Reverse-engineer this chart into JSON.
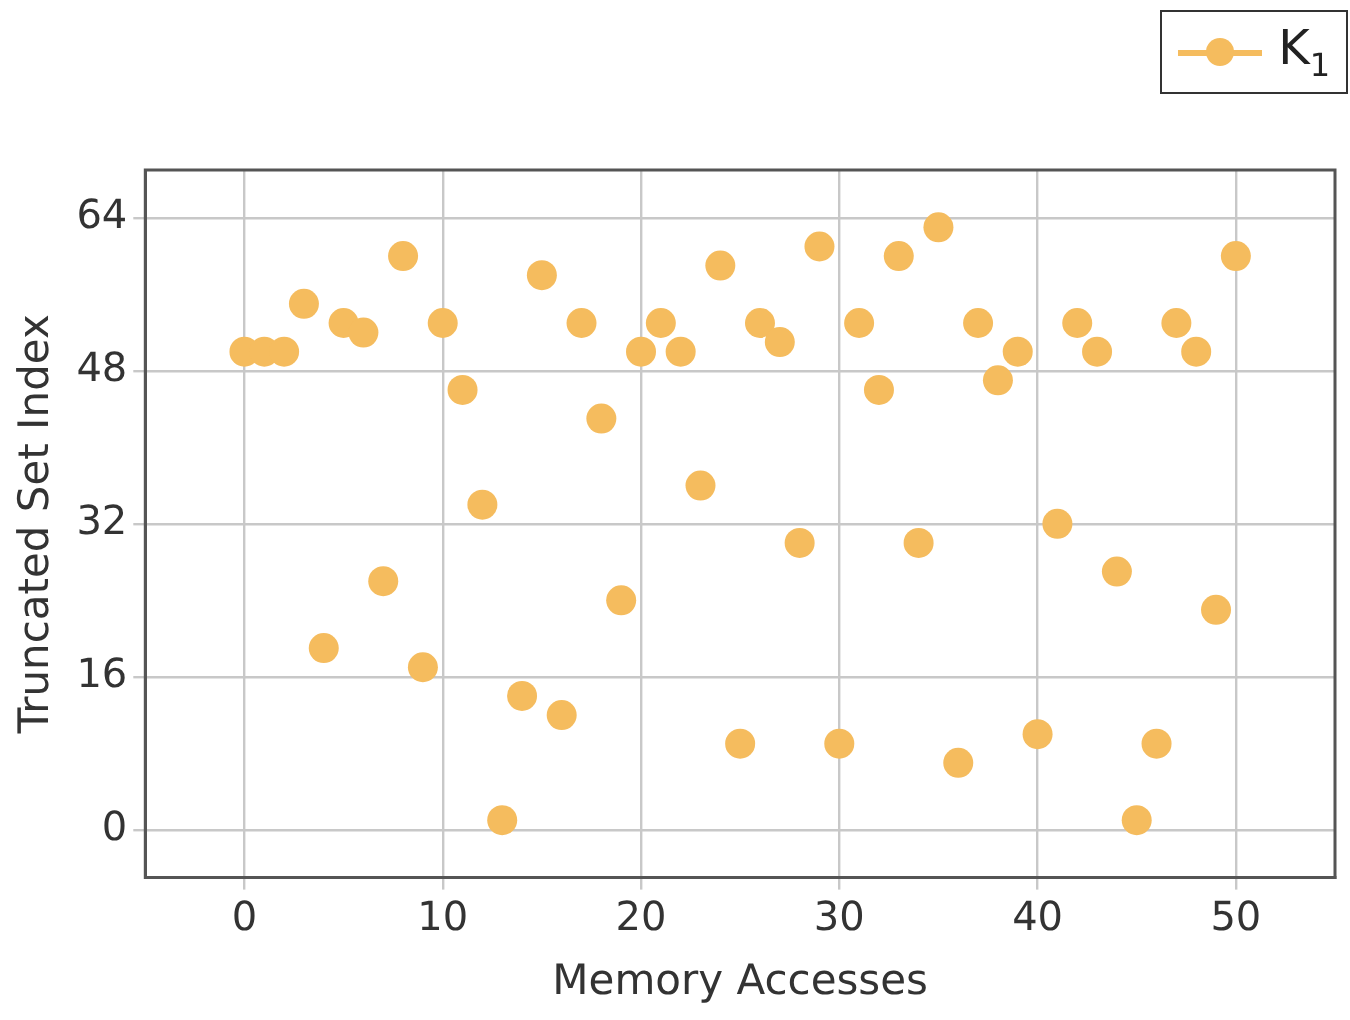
{
  "chart_data": {
    "type": "scatter",
    "xlabel": "Memory Accesses",
    "ylabel": "Truncated Set Index",
    "x": [
      0,
      1,
      2,
      3,
      4,
      5,
      6,
      7,
      8,
      9,
      10,
      11,
      12,
      13,
      14,
      15,
      16,
      17,
      18,
      19,
      20,
      21,
      22,
      23,
      24,
      25,
      26,
      27,
      28,
      29,
      30,
      31,
      32,
      33,
      34,
      35,
      36,
      37,
      38,
      39,
      40,
      41,
      42,
      43,
      44,
      45,
      46,
      47,
      48,
      49,
      50
    ],
    "series": [
      {
        "name": "K$_{1}$",
        "color": "#f5bc5e",
        "values": [
          50,
          50,
          50,
          55,
          19,
          53,
          52,
          26,
          60,
          17,
          53,
          46,
          34,
          1,
          14,
          58,
          12,
          53,
          43,
          24,
          50,
          53,
          50,
          36,
          59,
          9,
          53,
          51,
          30,
          61,
          9,
          53,
          46,
          60,
          30,
          63,
          7,
          53,
          47,
          50,
          10,
          32,
          53,
          50,
          27,
          1,
          9,
          53,
          50,
          23,
          60
        ]
      }
    ],
    "xlim": [
      -5,
      55
    ],
    "xticks": [
      0,
      10,
      20,
      30,
      40,
      50
    ],
    "ylim": [
      -5,
      69
    ],
    "yticks": [
      0,
      16,
      32,
      48,
      64
    ],
    "grid": true,
    "legend": "top right",
    "marker": "circle"
  }
}
